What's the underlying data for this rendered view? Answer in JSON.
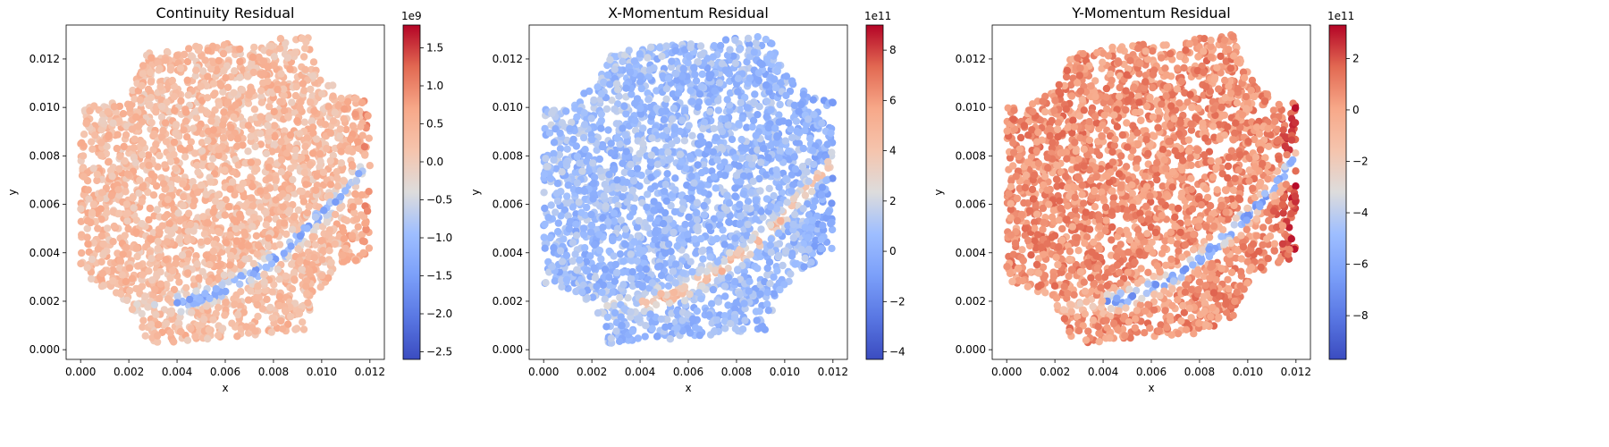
{
  "chart_data": [
    {
      "type": "scatter",
      "title": "Continuity Residual",
      "xlabel": "x",
      "ylabel": "y",
      "xlim": [
        -0.0006,
        0.0126
      ],
      "ylim": [
        -0.0004,
        0.0134
      ],
      "xticks": [
        "0.000",
        "0.002",
        "0.004",
        "0.006",
        "0.008",
        "0.010",
        "0.012"
      ],
      "yticks": [
        "0.000",
        "0.002",
        "0.004",
        "0.006",
        "0.008",
        "0.010",
        "0.012"
      ],
      "colorbar": {
        "cmap": "coolwarm",
        "range": [
          -2.6,
          1.8
        ],
        "ticks": [
          "−2.5",
          "−2.0",
          "−1.5",
          "−1.0",
          "−0.5",
          "0.0",
          "0.5",
          "1.0",
          "1.5"
        ],
        "offset_label": "1e9"
      },
      "field": {
        "base": 0.3,
        "top_left": -0.1,
        "band_low": -1.6,
        "right_edge": 0.5
      },
      "point_count": 2600
    },
    {
      "type": "scatter",
      "title": "X-Momentum Residual",
      "xlabel": "x",
      "ylabel": "y",
      "xlim": [
        -0.0006,
        0.0126
      ],
      "ylim": [
        -0.0004,
        0.0134
      ],
      "xticks": [
        "0.000",
        "0.002",
        "0.004",
        "0.006",
        "0.008",
        "0.010",
        "0.012"
      ],
      "yticks": [
        "0.000",
        "0.002",
        "0.004",
        "0.006",
        "0.008",
        "0.010",
        "0.012"
      ],
      "colorbar": {
        "cmap": "coolwarm",
        "range": [
          -4.3,
          9.0
        ],
        "ticks": [
          "−4",
          "−2",
          "0",
          "2",
          "4",
          "6",
          "8"
        ],
        "offset_label": "1e11"
      },
      "field": {
        "base": 0.5,
        "top_left": 1.0,
        "band_low": 4.0,
        "right_edge": -1.0
      },
      "point_count": 2600
    },
    {
      "type": "scatter",
      "title": "Y-Momentum Residual",
      "xlabel": "x",
      "ylabel": "y",
      "xlim": [
        -0.0006,
        0.0126
      ],
      "ylim": [
        -0.0004,
        0.0134
      ],
      "xticks": [
        "0.000",
        "0.002",
        "0.004",
        "0.006",
        "0.008",
        "0.010",
        "0.012"
      ],
      "yticks": [
        "0.000",
        "0.002",
        "0.004",
        "0.006",
        "0.008",
        "0.010",
        "0.012"
      ],
      "colorbar": {
        "cmap": "coolwarm",
        "range": [
          -9.7,
          3.3
        ],
        "ticks": [
          "−8",
          "−6",
          "−4",
          "−2",
          "0",
          "2"
        ],
        "offset_label": "1e11"
      },
      "field": {
        "base": 0.6,
        "top_left": 0.0,
        "band_low": -7.0,
        "right_edge": 1.5
      },
      "point_count": 2600
    }
  ]
}
